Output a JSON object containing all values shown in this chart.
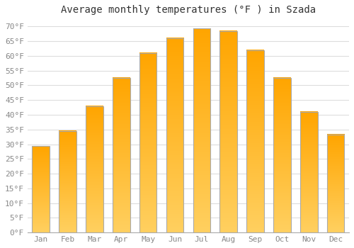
{
  "title": "Average monthly temperatures (°F ) in Szada",
  "months": [
    "Jan",
    "Feb",
    "Mar",
    "Apr",
    "May",
    "Jun",
    "Jul",
    "Aug",
    "Sep",
    "Oct",
    "Nov",
    "Dec"
  ],
  "values": [
    29.3,
    34.5,
    43.0,
    52.5,
    61.0,
    66.0,
    69.3,
    68.5,
    62.0,
    52.5,
    41.0,
    33.3
  ],
  "bar_color_top": "#FFA500",
  "bar_color_bottom": "#FFD060",
  "bar_edge_color": "#AAAAAA",
  "background_color": "#FFFFFF",
  "grid_color": "#DDDDDD",
  "text_color": "#888888",
  "ylim": [
    0,
    72
  ],
  "yticks": [
    0,
    5,
    10,
    15,
    20,
    25,
    30,
    35,
    40,
    45,
    50,
    55,
    60,
    65,
    70
  ],
  "title_fontsize": 10,
  "tick_fontsize": 8,
  "font_family": "monospace",
  "bar_width": 0.65
}
